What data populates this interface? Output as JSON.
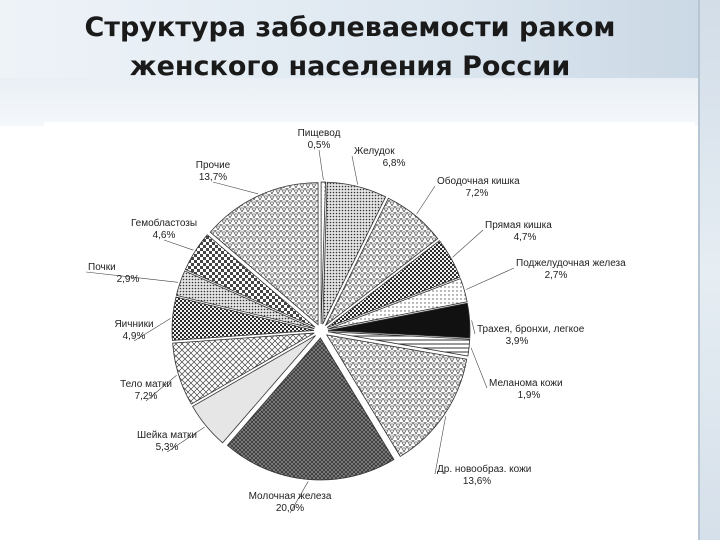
{
  "slide": {
    "title_line1": "Структура заболеваемости раком",
    "title_line2": "женского населения России"
  },
  "chart_data": {
    "type": "pie",
    "title": "Структура заболеваемости раком женского населения России",
    "start_angle_deg": 0,
    "direction": "clockwise",
    "slices": [
      {
        "name": "Пищевод",
        "value": 0.5,
        "label": "0,5%",
        "pattern": "dots-light"
      },
      {
        "name": "Желудок",
        "value": 6.8,
        "label": "6,8%",
        "pattern": "dots-med"
      },
      {
        "name": "Ободочная кишка",
        "value": 7.2,
        "label": "7,2%",
        "pattern": "zigzag"
      },
      {
        "name": "Прямая кишка",
        "value": 4.7,
        "label": "4,7%",
        "pattern": "dark-check"
      },
      {
        "name": "Поджелудочная железа",
        "value": 2.7,
        "label": "2,7%",
        "pattern": "dots-light"
      },
      {
        "name": "Трахея, бронхи, легкое",
        "value": 3.9,
        "label": "3,9%",
        "pattern": "black"
      },
      {
        "name": "Меланома кожи",
        "value": 1.9,
        "label": "1,9%",
        "pattern": "stripes"
      },
      {
        "name": "Др. новообраз. кожи",
        "value": 13.6,
        "label": "13,6%",
        "pattern": "zigzag"
      },
      {
        "name": "Молочная железа",
        "value": 20.0,
        "label": "20,0%",
        "pattern": "grid"
      },
      {
        "name": "Шейка матки",
        "value": 5.3,
        "label": "5,3%",
        "pattern": "plain-light"
      },
      {
        "name": "Тело матки",
        "value": 7.2,
        "label": "7,2%",
        "pattern": "weave"
      },
      {
        "name": "Яичники",
        "value": 4.9,
        "label": "4,9%",
        "pattern": "dark-check"
      },
      {
        "name": "Почки",
        "value": 2.9,
        "label": "2,9%",
        "pattern": "dots-med"
      },
      {
        "name": "Гемобластозы",
        "value": 4.6,
        "label": "4,6%",
        "pattern": "check"
      },
      {
        "name": "Прочие",
        "value": 13.7,
        "label": "13,7%",
        "pattern": "zigzag"
      }
    ]
  }
}
